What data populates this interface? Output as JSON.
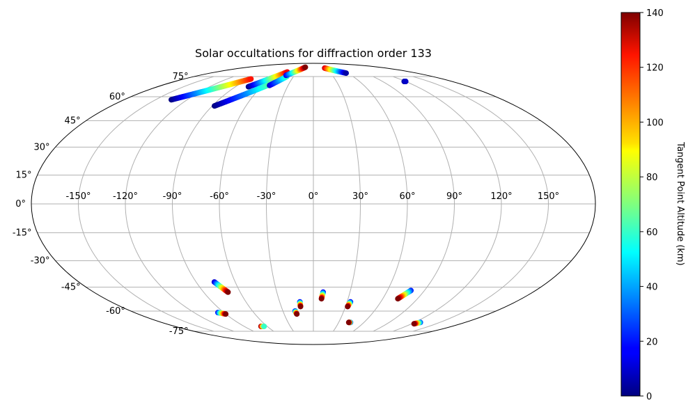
{
  "chart_data": {
    "type": "scatter",
    "projection": "mollweide",
    "title": "Solar occultations for diffraction order 133",
    "xlabel": "",
    "ylabel": "",
    "grid": true,
    "lon_ticks": [
      {
        "value": -150,
        "label": "-150°"
      },
      {
        "value": -120,
        "label": "-120°"
      },
      {
        "value": -90,
        "label": "-90°"
      },
      {
        "value": -60,
        "label": "-60°"
      },
      {
        "value": -30,
        "label": "-30°"
      },
      {
        "value": 0,
        "label": "0°"
      },
      {
        "value": 30,
        "label": "30°"
      },
      {
        "value": 60,
        "label": "60°"
      },
      {
        "value": 90,
        "label": "90°"
      },
      {
        "value": 120,
        "label": "120°"
      },
      {
        "value": 150,
        "label": "150°"
      }
    ],
    "lat_ticks": [
      {
        "value": 75,
        "label": "75°"
      },
      {
        "value": 60,
        "label": "60°"
      },
      {
        "value": 45,
        "label": "45°"
      },
      {
        "value": 30,
        "label": "30°"
      },
      {
        "value": 15,
        "label": "15°"
      },
      {
        "value": 0,
        "label": "0°"
      },
      {
        "value": -15,
        "label": "-15°"
      },
      {
        "value": -30,
        "label": "-30°"
      },
      {
        "value": -45,
        "label": "-45°"
      },
      {
        "value": -60,
        "label": "-60°"
      },
      {
        "value": -75,
        "label": "-75°"
      }
    ],
    "colorbar": {
      "label": "Tangent Point Altitude (km)",
      "colormap": "jet",
      "range": [
        0,
        140
      ],
      "ticks": [
        {
          "value": 0,
          "label": "0"
        },
        {
          "value": 20,
          "label": "20"
        },
        {
          "value": 40,
          "label": "40"
        },
        {
          "value": 60,
          "label": "60"
        },
        {
          "value": 80,
          "label": "80"
        },
        {
          "value": 100,
          "label": "100"
        },
        {
          "value": 120,
          "label": "120"
        },
        {
          "value": 140,
          "label": "140"
        }
      ]
    },
    "tracks": [
      {
        "lon_start": -135,
        "lat_start": 58,
        "lon_end": -87,
        "lat_end": 73,
        "alt_start": 0,
        "alt_end": 120
      },
      {
        "lon_start": -75,
        "lat_start": 67,
        "lon_end": -48,
        "lat_end": 79,
        "alt_start": 0,
        "alt_end": 125
      },
      {
        "lon_start": -88,
        "lat_start": 54,
        "lon_end": -50,
        "lat_end": 70,
        "alt_start": 0,
        "alt_end": 70
      },
      {
        "lon_start": -52,
        "lat_start": 68,
        "lon_end": -40,
        "lat_end": 75,
        "alt_start": 10,
        "alt_end": 60
      },
      {
        "lon_start": -43,
        "lat_start": 76,
        "lon_end": -22,
        "lat_end": 84,
        "alt_start": 15,
        "alt_end": 140
      },
      {
        "lon_start": 28,
        "lat_start": 83,
        "lon_end": 57,
        "lat_end": 78,
        "alt_start": 130,
        "alt_end": 5
      },
      {
        "lon_start": 118,
        "lat_start": 71,
        "lon_end": 120,
        "lat_end": 71,
        "alt_start": 5,
        "alt_end": 10
      },
      {
        "lon_start": -76,
        "lat_start": -42,
        "lon_end": -70,
        "lat_end": -48,
        "alt_start": 10,
        "alt_end": 140
      },
      {
        "lon_start": -96,
        "lat_start": -61,
        "lon_end": -90,
        "lat_end": -62,
        "alt_start": 20,
        "alt_end": 140
      },
      {
        "lon_start": -68,
        "lat_start": -71,
        "lon_end": -64,
        "lat_end": -71,
        "alt_start": 140,
        "alt_end": 60
      },
      {
        "lon_start": -18,
        "lat_start": -60,
        "lon_end": -17,
        "lat_end": -62,
        "alt_start": 20,
        "alt_end": 140
      },
      {
        "lon_start": -12,
        "lat_start": -54,
        "lon_end": -12,
        "lat_end": -57,
        "alt_start": 20,
        "alt_end": 140
      },
      {
        "lon_start": 8,
        "lat_start": -48,
        "lon_end": 7,
        "lat_end": -52,
        "alt_start": 20,
        "alt_end": 140
      },
      {
        "lon_start": 33,
        "lat_start": -54,
        "lon_end": 32,
        "lat_end": -57,
        "alt_start": 20,
        "alt_end": 140
      },
      {
        "lon_start": 44,
        "lat_start": -68,
        "lon_end": 42,
        "lat_end": -68,
        "alt_start": 20,
        "alt_end": 140
      },
      {
        "lon_start": 79,
        "lat_start": -47,
        "lon_end": 73,
        "lat_end": -52,
        "alt_start": 20,
        "alt_end": 140
      },
      {
        "lon_start": 127,
        "lat_start": -68,
        "lon_end": 123,
        "lat_end": -69,
        "alt_start": 30,
        "alt_end": 140
      }
    ]
  }
}
